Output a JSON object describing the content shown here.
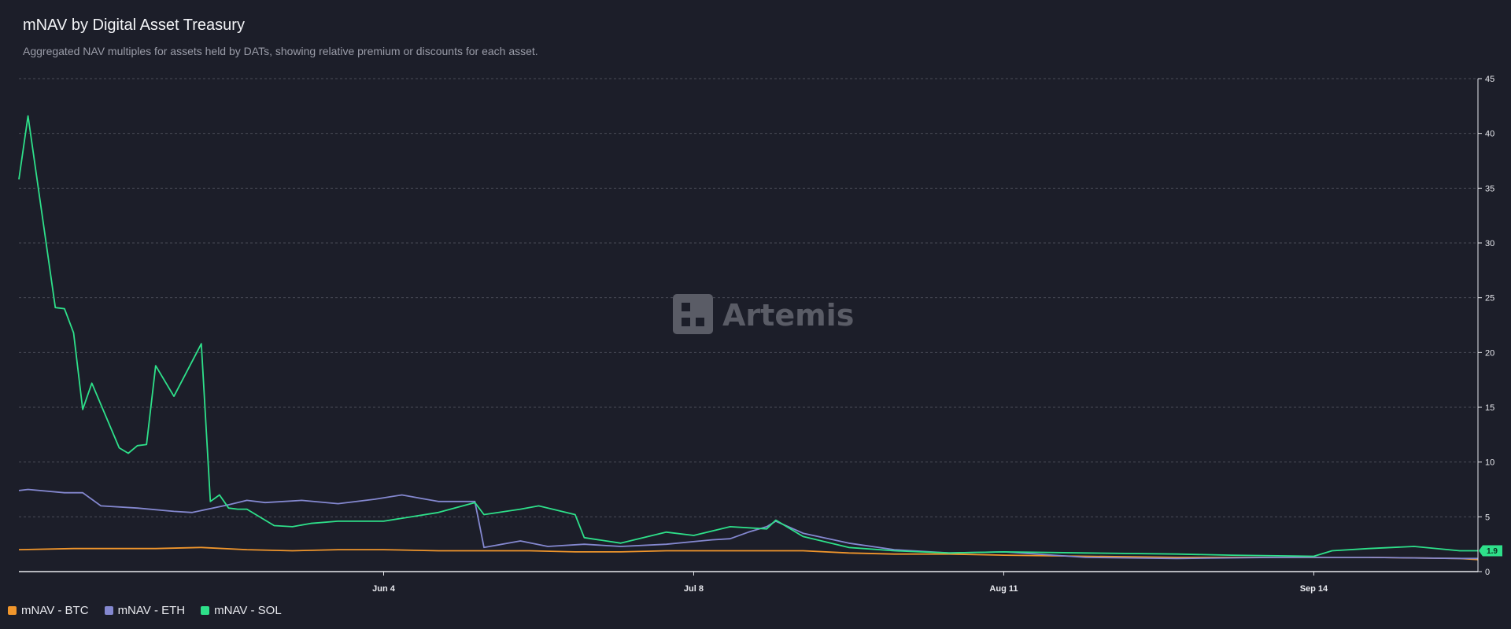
{
  "header": {
    "title": "mNAV by Digital Asset Treasury",
    "subtitle": "Aggregated NAV multiples for assets held by DATs, showing relative premium or discounts for each asset."
  },
  "watermark": {
    "text": "Artemis"
  },
  "end_label": {
    "text": "1.9",
    "color": "#2ee08a"
  },
  "legend": {
    "items": [
      {
        "label": "mNAV - BTC",
        "color": "#f0962c"
      },
      {
        "label": "mNAV - ETH",
        "color": "#8488d0"
      },
      {
        "label": "mNAV - SOL",
        "color": "#2ee08a"
      }
    ]
  },
  "chart_data": {
    "type": "line",
    "xlabel": "",
    "ylabel": "",
    "x_range": [
      "2025-04-25",
      "2025-10-02"
    ],
    "xticks": [
      {
        "date": "2025-06-04",
        "label": "Jun 4"
      },
      {
        "date": "2025-07-08",
        "label": "Jul 8"
      },
      {
        "date": "2025-08-11",
        "label": "Aug 11"
      },
      {
        "date": "2025-09-14",
        "label": "Sep 14"
      }
    ],
    "ylim": [
      0,
      45
    ],
    "yticks": [
      0,
      5,
      10,
      15,
      20,
      25,
      30,
      35,
      40,
      45
    ],
    "grid": true,
    "legend_position": "bottom-left",
    "series": [
      {
        "name": "mNAV - BTC",
        "color": "#f0962c",
        "x": [
          "2025-04-25",
          "2025-05-01",
          "2025-05-05",
          "2025-05-10",
          "2025-05-15",
          "2025-05-20",
          "2025-05-25",
          "2025-05-30",
          "2025-06-04",
          "2025-06-10",
          "2025-06-15",
          "2025-06-20",
          "2025-06-25",
          "2025-06-30",
          "2025-07-05",
          "2025-07-10",
          "2025-07-15",
          "2025-07-20",
          "2025-07-25",
          "2025-07-30",
          "2025-08-05",
          "2025-08-11",
          "2025-08-20",
          "2025-08-30",
          "2025-09-05",
          "2025-09-14",
          "2025-09-20",
          "2025-09-30",
          "2025-10-02"
        ],
        "values": [
          2.0,
          2.1,
          2.1,
          2.1,
          2.2,
          2.0,
          1.9,
          2.0,
          2.0,
          1.9,
          1.9,
          1.9,
          1.8,
          1.8,
          1.9,
          1.9,
          1.9,
          1.9,
          1.7,
          1.6,
          1.6,
          1.5,
          1.4,
          1.3,
          1.3,
          1.3,
          1.3,
          1.2,
          1.1
        ]
      },
      {
        "name": "mNAV - ETH",
        "color": "#8488d0",
        "x": [
          "2025-04-25",
          "2025-04-26",
          "2025-04-30",
          "2025-05-02",
          "2025-05-04",
          "2025-05-08",
          "2025-05-12",
          "2025-05-14",
          "2025-05-18",
          "2025-05-20",
          "2025-05-22",
          "2025-05-26",
          "2025-05-30",
          "2025-06-03",
          "2025-06-06",
          "2025-06-10",
          "2025-06-14",
          "2025-06-15",
          "2025-06-19",
          "2025-06-22",
          "2025-06-26",
          "2025-06-30",
          "2025-07-05",
          "2025-07-10",
          "2025-07-12",
          "2025-07-14",
          "2025-07-16",
          "2025-07-17",
          "2025-07-20",
          "2025-07-25",
          "2025-07-30",
          "2025-08-05",
          "2025-08-11",
          "2025-08-20",
          "2025-08-30",
          "2025-09-10",
          "2025-09-20",
          "2025-09-30",
          "2025-10-02"
        ],
        "values": [
          7.4,
          7.5,
          7.2,
          7.2,
          6.0,
          5.8,
          5.5,
          5.4,
          6.1,
          6.5,
          6.3,
          6.5,
          6.2,
          6.6,
          7.0,
          6.4,
          6.4,
          2.2,
          2.8,
          2.3,
          2.5,
          2.3,
          2.5,
          2.9,
          3.0,
          3.6,
          4.1,
          4.6,
          3.5,
          2.6,
          2.0,
          1.7,
          1.8,
          1.3,
          1.2,
          1.3,
          1.3,
          1.2,
          1.2
        ]
      },
      {
        "name": "mNAV - SOL",
        "color": "#2ee08a",
        "x": [
          "2025-04-25",
          "2025-04-26",
          "2025-04-29",
          "2025-04-30",
          "2025-05-01",
          "2025-05-02",
          "2025-05-03",
          "2025-05-06",
          "2025-05-07",
          "2025-05-08",
          "2025-05-09",
          "2025-05-10",
          "2025-05-12",
          "2025-05-15",
          "2025-05-16",
          "2025-05-17",
          "2025-05-18",
          "2025-05-19",
          "2025-05-20",
          "2025-05-23",
          "2025-05-25",
          "2025-05-27",
          "2025-05-30",
          "2025-06-04",
          "2025-06-10",
          "2025-06-14",
          "2025-06-15",
          "2025-06-19",
          "2025-06-21",
          "2025-06-25",
          "2025-06-26",
          "2025-06-30",
          "2025-07-05",
          "2025-07-08",
          "2025-07-12",
          "2025-07-16",
          "2025-07-17",
          "2025-07-20",
          "2025-07-25",
          "2025-07-30",
          "2025-08-05",
          "2025-08-11",
          "2025-08-20",
          "2025-08-30",
          "2025-09-05",
          "2025-09-14",
          "2025-09-16",
          "2025-09-20",
          "2025-09-25",
          "2025-09-30",
          "2025-10-02"
        ],
        "values": [
          35.8,
          41.6,
          24.1,
          24.0,
          21.8,
          14.8,
          17.2,
          11.3,
          10.8,
          11.5,
          11.6,
          18.8,
          16.0,
          20.8,
          6.4,
          7.0,
          5.8,
          5.7,
          5.7,
          4.2,
          4.1,
          4.4,
          4.6,
          4.6,
          5.4,
          6.3,
          5.2,
          5.7,
          6.0,
          5.2,
          3.1,
          2.6,
          3.6,
          3.3,
          4.1,
          3.9,
          4.7,
          3.2,
          2.2,
          1.9,
          1.7,
          1.8,
          1.7,
          1.6,
          1.5,
          1.4,
          1.9,
          2.1,
          2.3,
          1.9,
          1.9
        ]
      }
    ]
  }
}
